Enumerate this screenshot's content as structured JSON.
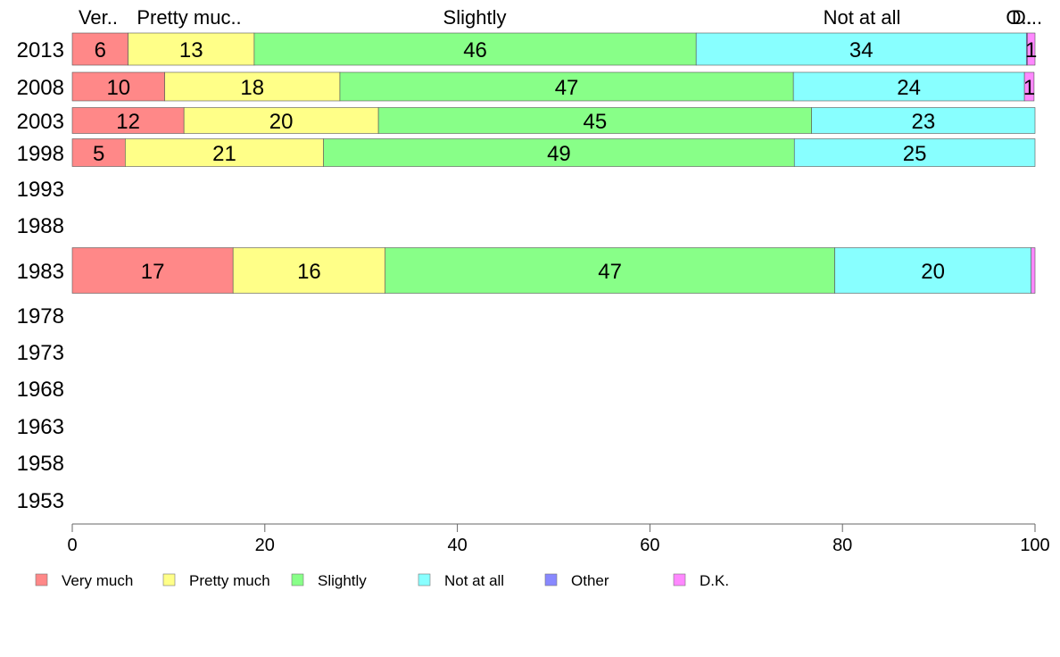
{
  "chart_data": {
    "type": "bar",
    "orientation": "horizontal",
    "stacked": true,
    "xlim": [
      0,
      100
    ],
    "x_ticks": [
      "0",
      "20",
      "40",
      "60",
      "80",
      "100"
    ],
    "years": [
      "2013",
      "2008",
      "2003",
      "1998",
      "1993",
      "1988",
      "1983",
      "1978",
      "1973",
      "1968",
      "1963",
      "1958",
      "1953"
    ],
    "top_category_labels": [
      "Ver..",
      "Pretty muc..",
      "Slightly",
      "Not at all",
      "O..",
      "D..."
    ],
    "series": [
      {
        "name": "Very much",
        "color": "#ff8888",
        "values": [
          5.8,
          9.6,
          11.6,
          5.5,
          null,
          null,
          16.7,
          null,
          null,
          null,
          null,
          null,
          null
        ],
        "labels": [
          "6",
          "10",
          "12",
          "5",
          "",
          "",
          "17",
          "",
          "",
          "",
          "",
          "",
          ""
        ]
      },
      {
        "name": "Pretty much",
        "color": "#ffff88",
        "values": [
          13.1,
          18.2,
          20.2,
          20.6,
          null,
          null,
          15.8,
          null,
          null,
          null,
          null,
          null,
          null
        ],
        "labels": [
          "13",
          "18",
          "20",
          "21",
          "",
          "",
          "16",
          "",
          "",
          "",
          "",
          "",
          ""
        ]
      },
      {
        "name": "Slightly",
        "color": "#88ff88",
        "values": [
          45.9,
          47.1,
          45.0,
          48.9,
          null,
          null,
          46.7,
          null,
          null,
          null,
          null,
          null,
          null
        ],
        "labels": [
          "46",
          "47",
          "45",
          "49",
          "",
          "",
          "47",
          "",
          "",
          "",
          "",
          "",
          ""
        ]
      },
      {
        "name": "Not at all",
        "color": "#88ffff",
        "values": [
          34.3,
          24.0,
          23.2,
          25.0,
          null,
          null,
          20.4,
          null,
          null,
          null,
          null,
          null,
          null
        ],
        "labels": [
          "34",
          "24",
          "23",
          "25",
          "",
          "",
          "20",
          "",
          "",
          "",
          "",
          "",
          ""
        ]
      },
      {
        "name": "Other",
        "color": "#8888ff",
        "values": [
          0.1,
          0,
          0,
          0,
          null,
          null,
          0,
          null,
          null,
          null,
          null,
          null,
          null
        ],
        "labels": [
          "",
          "",
          "",
          "",
          "",
          "",
          "",
          "",
          "",
          "",
          "",
          "",
          ""
        ]
      },
      {
        "name": "D.K.",
        "color": "#ff88ff",
        "values": [
          0.8,
          1.0,
          0,
          0,
          null,
          null,
          0.4,
          null,
          null,
          null,
          null,
          null,
          null
        ],
        "labels": [
          "1",
          "1",
          "",
          "",
          "",
          "",
          "",
          "",
          "",
          "",
          "",
          "",
          ""
        ]
      }
    ],
    "legend": {
      "position": "bottom-left",
      "entries": [
        "Very much",
        "Pretty much",
        "Slightly",
        "Not at all",
        "Other",
        "D.K."
      ]
    },
    "grid": false
  }
}
